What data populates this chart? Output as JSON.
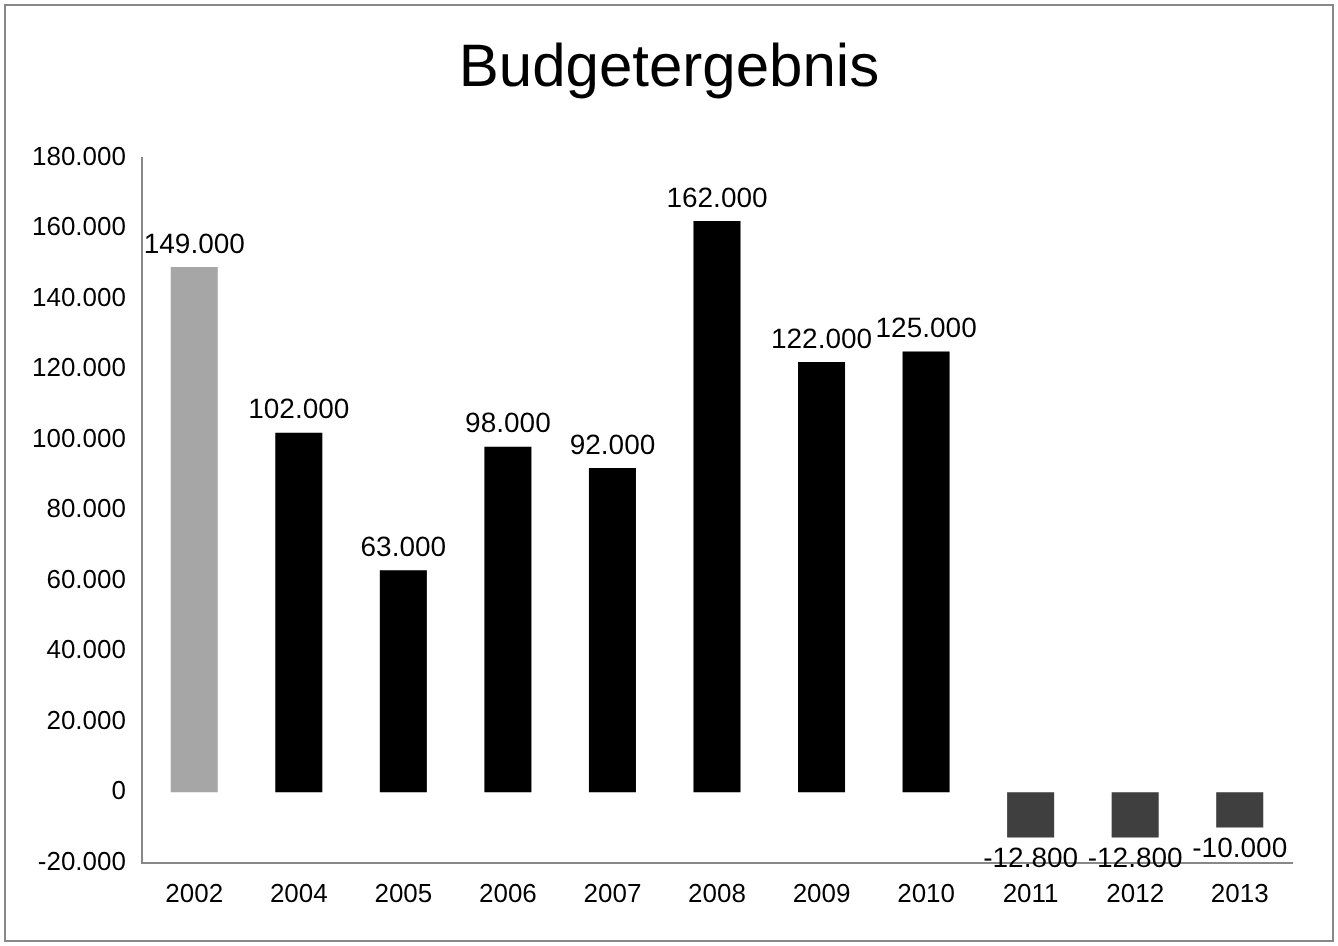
{
  "chart_data": {
    "type": "bar",
    "title": "Budgetergebnis",
    "categories": [
      "2002",
      "2004",
      "2005",
      "2006",
      "2007",
      "2008",
      "2009",
      "2010",
      "2011",
      "2012",
      "2013"
    ],
    "values": [
      149000,
      102000,
      63000,
      98000,
      92000,
      162000,
      122000,
      125000,
      -12800,
      -12800,
      -10000
    ],
    "colors": [
      "#a6a6a6",
      "#000000",
      "#000000",
      "#000000",
      "#000000",
      "#000000",
      "#000000",
      "#000000",
      "#3f3f3f",
      "#3f3f3f",
      "#3f3f3f"
    ],
    "value_labels": [
      "149.000",
      "102.000",
      "63.000",
      "98.000",
      "92.000",
      "162.000",
      "122.000",
      "125.000",
      "-12.800",
      "-12.800",
      "-10.000"
    ],
    "ylim": [
      -20000,
      180000
    ],
    "yticks": [
      {
        "value": -20000,
        "label": "-20.000"
      },
      0,
      {
        "value": 20000,
        "label": "20.000"
      },
      {
        "value": 40000,
        "label": "40.000"
      },
      {
        "value": 60000,
        "label": "60.000"
      },
      {
        "value": 80000,
        "label": "80.000"
      },
      {
        "value": 100000,
        "label": "100.000"
      },
      {
        "value": 120000,
        "label": "120.000"
      },
      {
        "value": 140000,
        "label": "140.000"
      },
      {
        "value": 160000,
        "label": "160.000"
      },
      {
        "value": 180000,
        "label": "180.000"
      }
    ],
    "grid": false,
    "legend": false
  }
}
